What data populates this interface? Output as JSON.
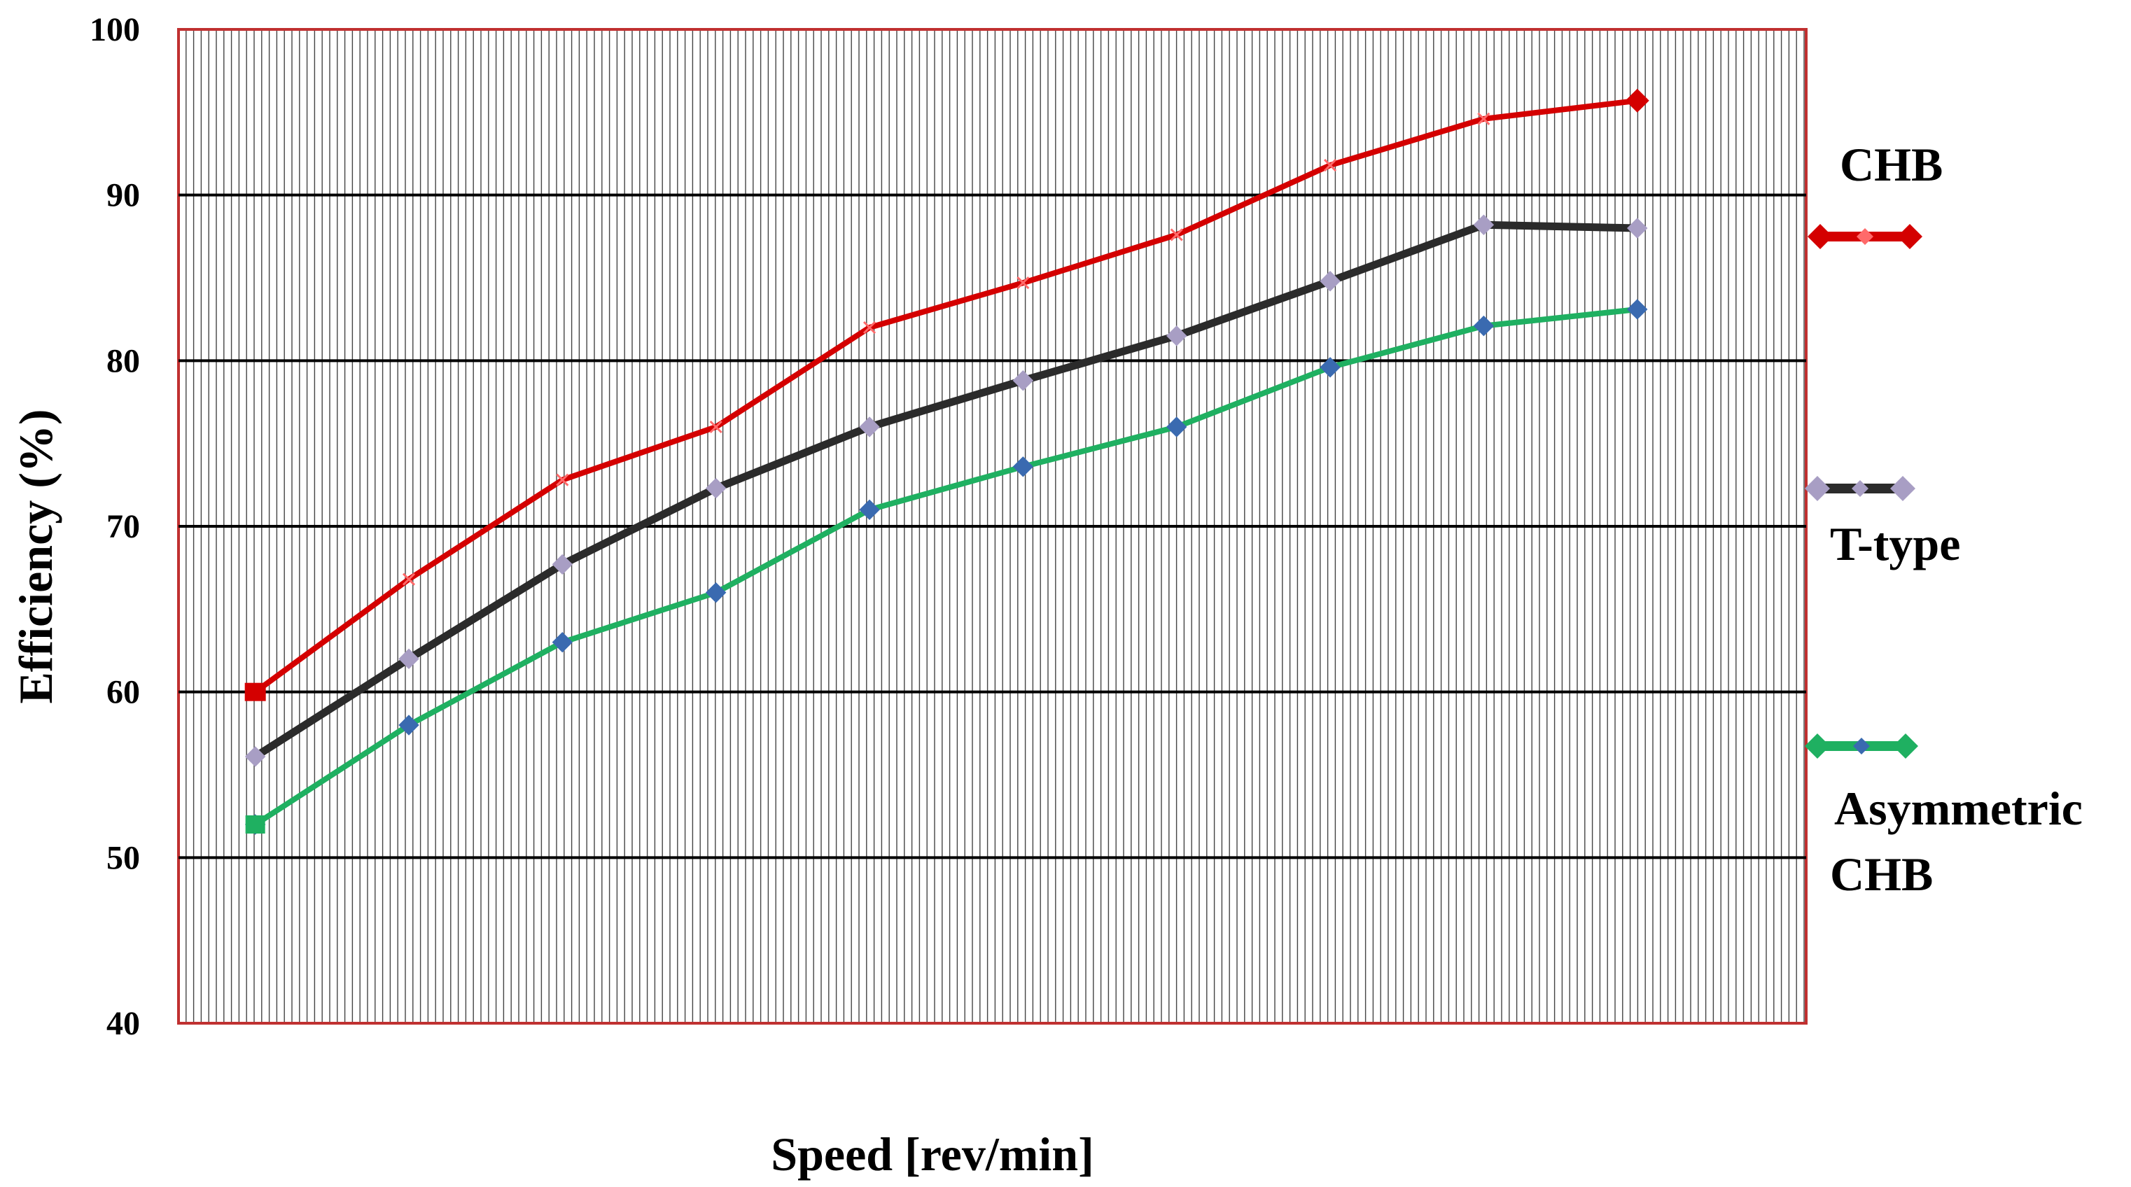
{
  "chart_data": {
    "type": "line",
    "title": "",
    "xlabel": "Speed [rev/min]",
    "ylabel": "Efficiency (%)",
    "ylim": [
      40,
      100
    ],
    "yticks": [
      "40",
      "50",
      "60",
      "70",
      "80",
      "90",
      "100"
    ],
    "x": [
      1,
      2,
      3,
      4,
      5,
      6,
      7,
      8,
      9,
      10
    ],
    "grid": "on",
    "legend": "right",
    "series": [
      {
        "name": "CHB",
        "values": [
          60,
          66.8,
          72.8,
          76,
          82,
          84.7,
          87.6,
          91.8,
          94.6,
          95.7
        ],
        "color": "#d40000",
        "marker": "x"
      },
      {
        "name": "T-type",
        "values": [
          56.1,
          62,
          67.7,
          72.3,
          76,
          78.8,
          81.5,
          84.8,
          88.2,
          88
        ],
        "color": "#2b2b2b",
        "marker": "diamond",
        "marker_color": "#a89ec4"
      },
      {
        "name": "Asymmetric CHB",
        "values": [
          52,
          58,
          63,
          66,
          71,
          73.6,
          76,
          79.6,
          82.1,
          83.1
        ],
        "color": "#1fb061",
        "marker": "diamond",
        "marker_color": "#3a6ab0"
      }
    ]
  }
}
